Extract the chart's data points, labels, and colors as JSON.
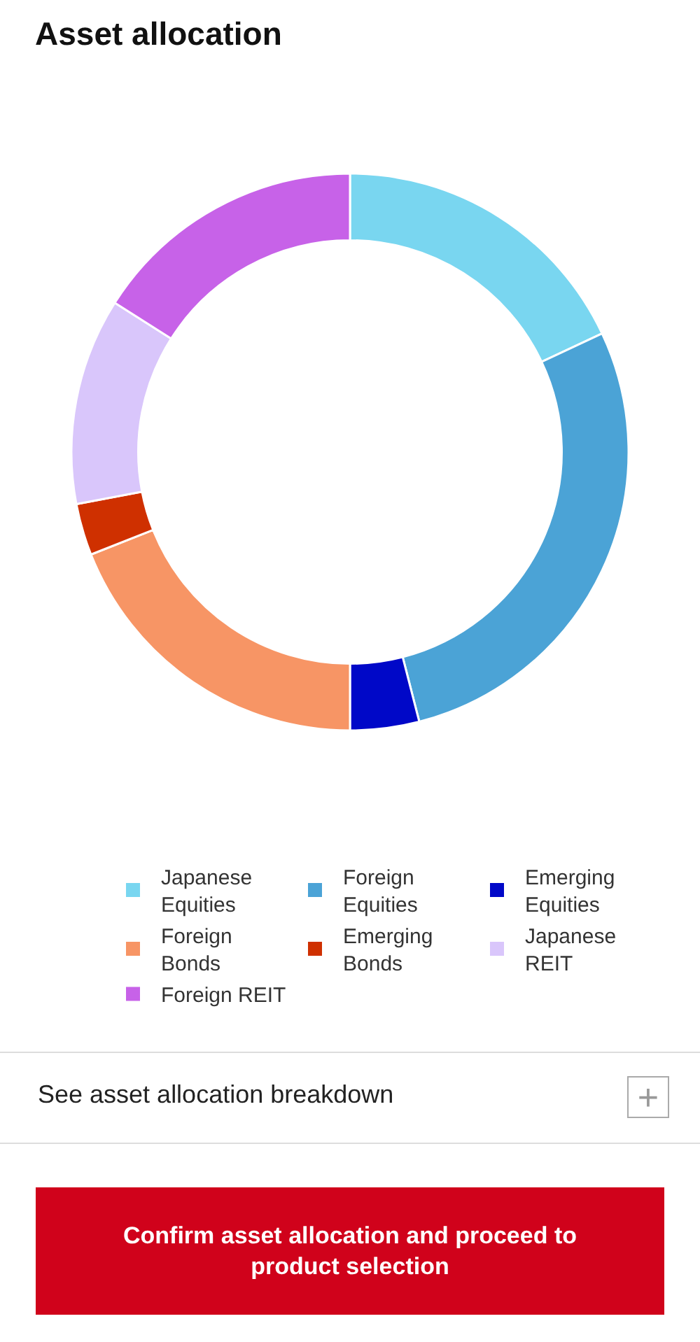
{
  "chart_data": {
    "type": "donut",
    "title": "Asset allocation",
    "categories": [
      "Japanese Equities",
      "Foreign Equities",
      "Emerging Equities",
      "Foreign Bonds",
      "Emerging Bonds",
      "Japanese REIT",
      "Foreign REIT"
    ],
    "values": [
      18,
      28,
      4,
      19,
      3,
      12,
      16
    ],
    "colors": [
      "#79d6f0",
      "#4ba3d6",
      "#0008c8",
      "#f79565",
      "#cf3000",
      "#d9c6fb",
      "#c762e8"
    ],
    "legend": "bottom",
    "annotations": [
      "See asset allocation breakdown",
      "+",
      "Confirm asset allocation and proceed to product selection"
    ]
  }
}
